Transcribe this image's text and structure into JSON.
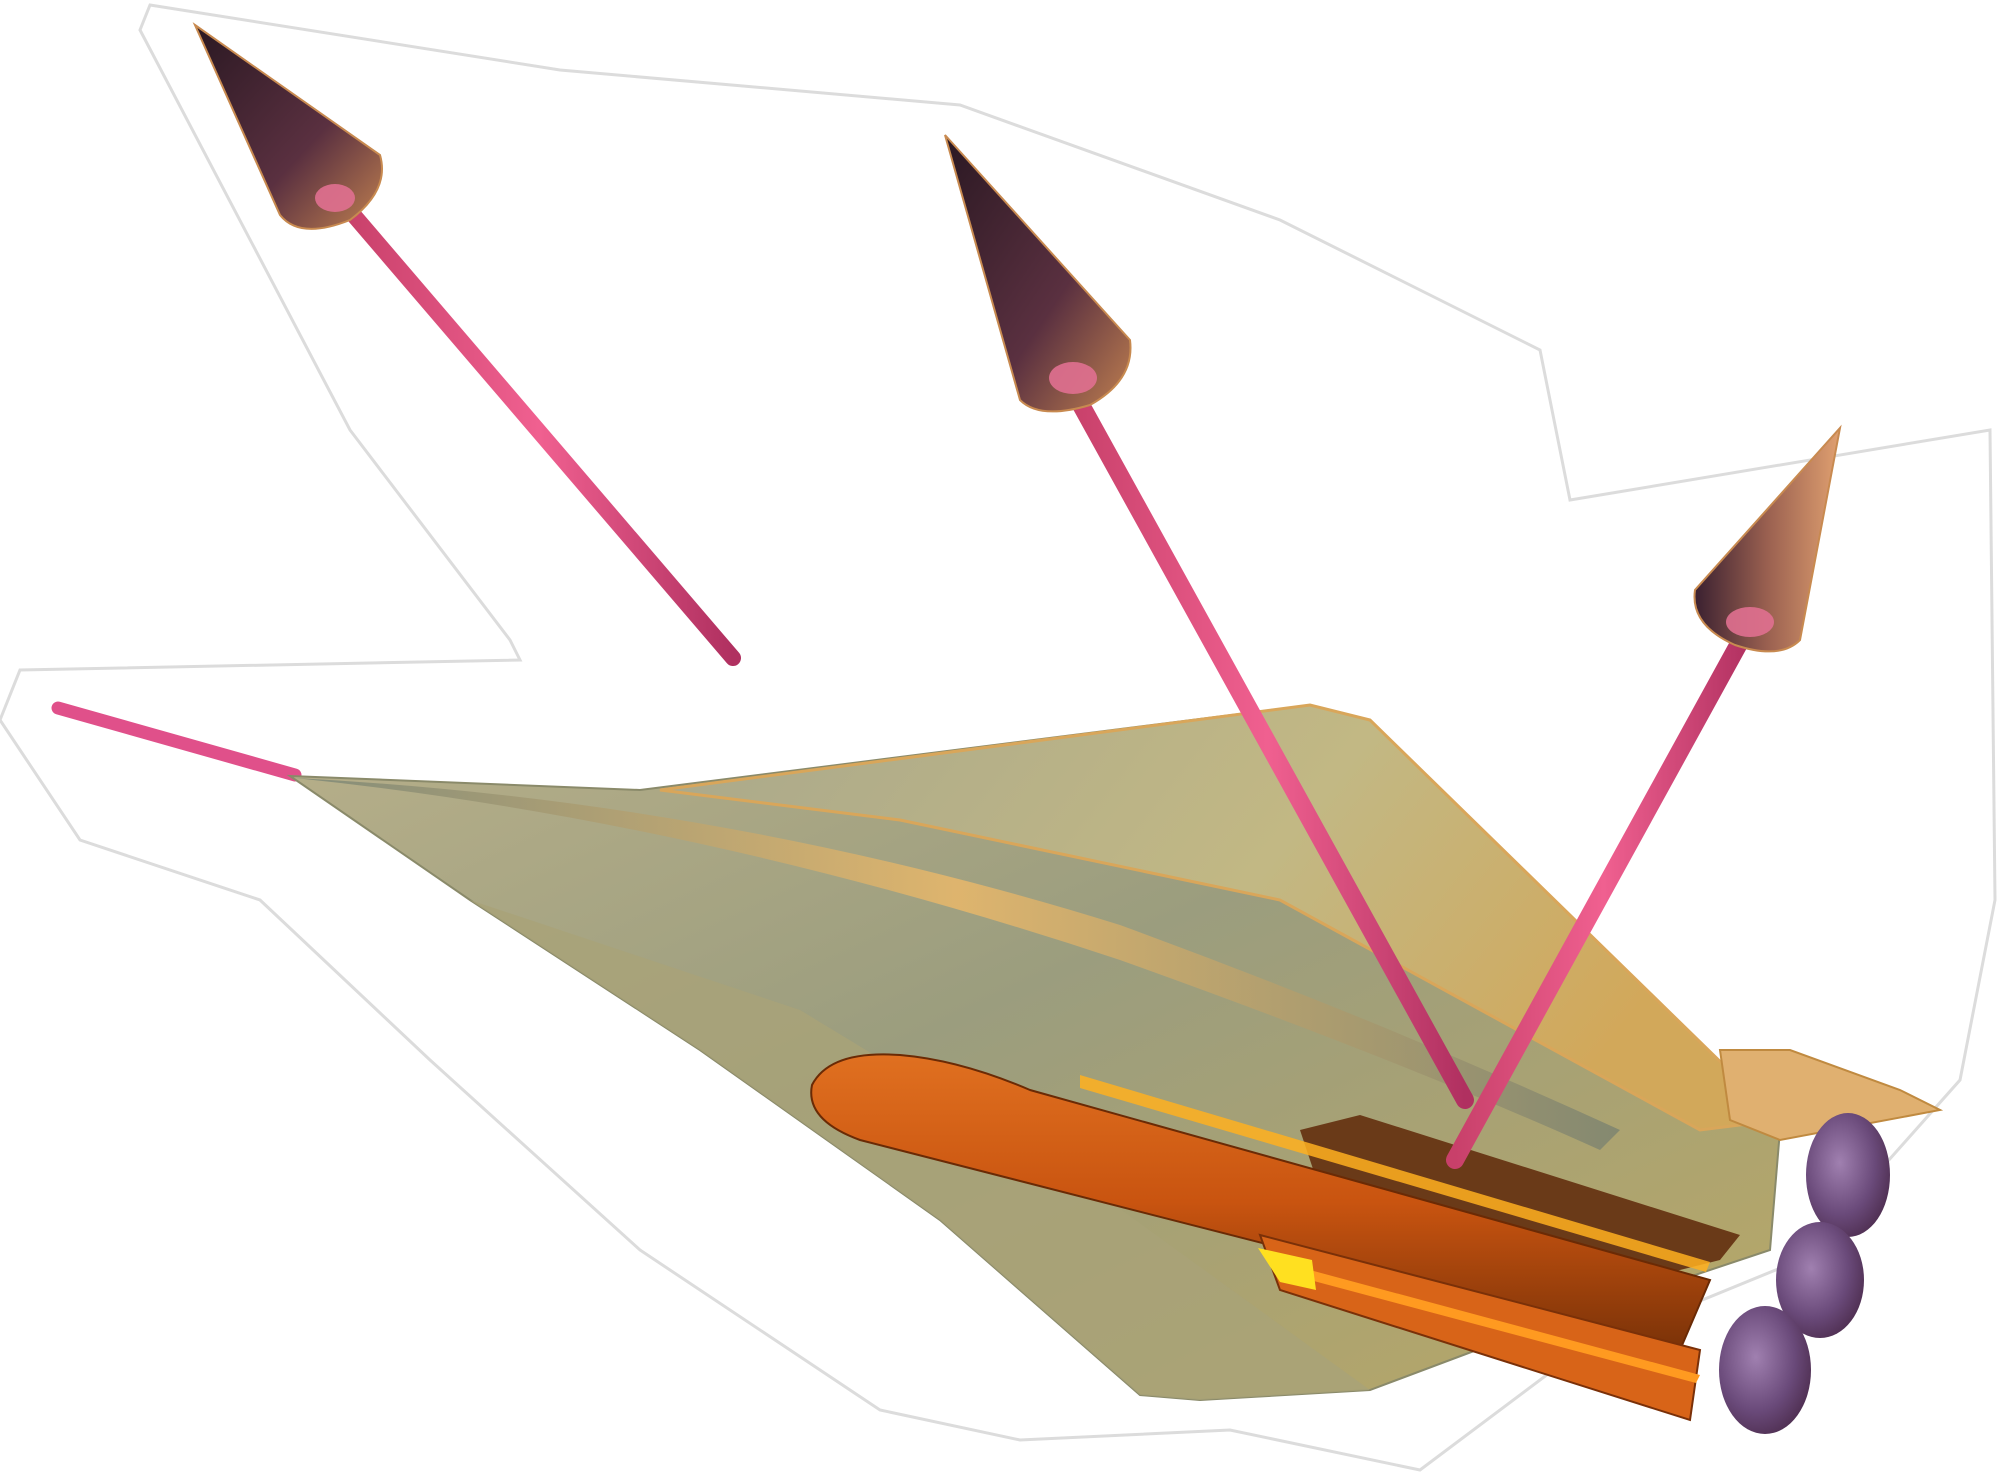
{
  "scene": {
    "subject": "hypersonic-vehicle-with-force-vectors",
    "colors": {
      "background": "#ffffff",
      "sticker_outline": "#d8d8d8",
      "airframe_light": "#c9c28f",
      "airframe_mid": "#9c9c7c",
      "airframe_dark": "#6f786a",
      "airframe_highlight": "#f0b860",
      "booster_body": "#e0661a",
      "booster_dark": "#8a3a10",
      "booster_glow": "#ffb020",
      "nozzle": "#7a5a8a",
      "vector_shaft": "#e05080",
      "cone_dark": "#3a2030",
      "cone_light": "#d07a6a"
    }
  }
}
